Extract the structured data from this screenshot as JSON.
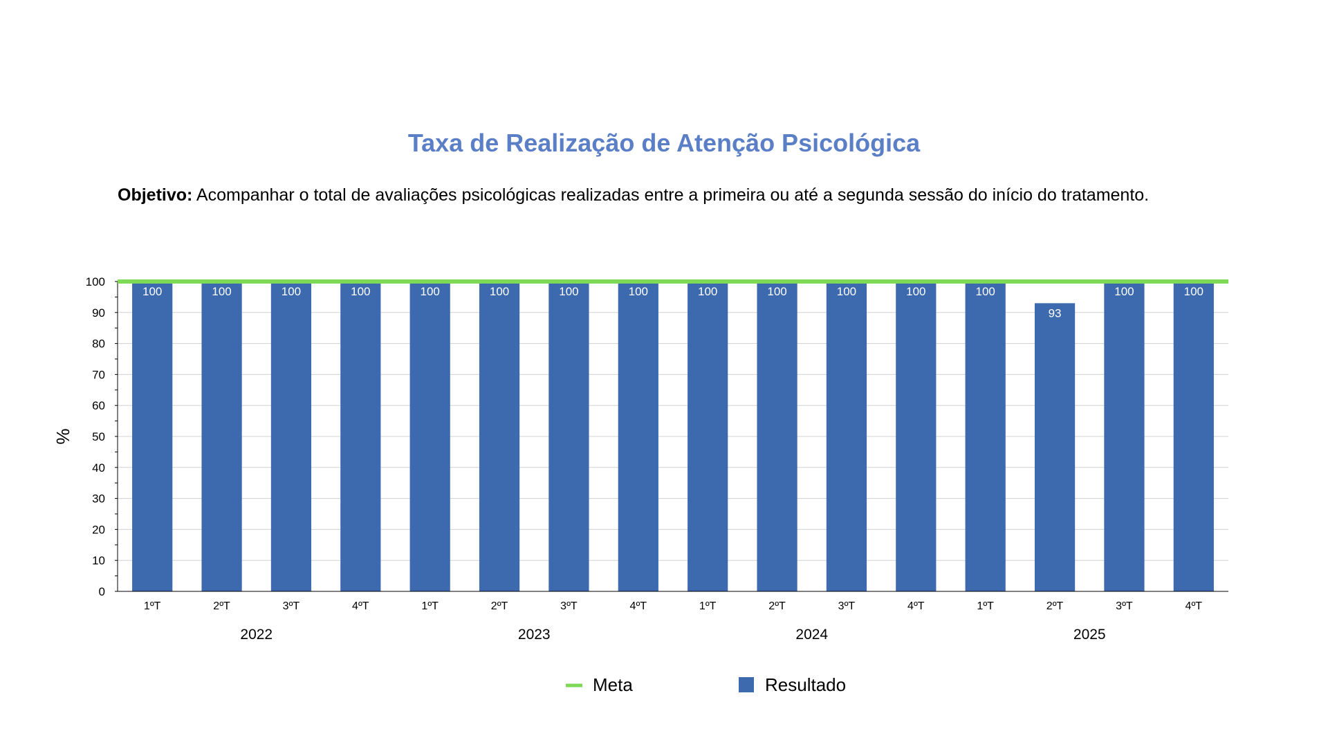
{
  "header": {
    "title": "Taxa de Realização de Atenção Psicológica",
    "objective_label": "Objetivo:",
    "objective_text": " Acompanhar o total de avaliações psicológicas realizadas entre a primeira ou até a segunda sessão do início do tratamento."
  },
  "chart_data": {
    "type": "bar",
    "title": "Taxa de Realização de Atenção Psicológica",
    "ylabel": "%",
    "xlabel": "",
    "ylim": [
      0,
      100
    ],
    "yticks": [
      0,
      10,
      20,
      30,
      40,
      50,
      60,
      70,
      80,
      90,
      100
    ],
    "grid": true,
    "legend_position": "bottom",
    "categories": [
      "1ºT",
      "2ºT",
      "3ºT",
      "4ºT",
      "1ºT",
      "2ºT",
      "3ºT",
      "4ºT",
      "1ºT",
      "2ºT",
      "3ºT",
      "4ºT",
      "1ºT",
      "2ºT",
      "3ºT",
      "4ºT"
    ],
    "groups": [
      {
        "label": "2022",
        "count": 4
      },
      {
        "label": "2023",
        "count": 4
      },
      {
        "label": "2024",
        "count": 4
      },
      {
        "label": "2025",
        "count": 4
      }
    ],
    "series": [
      {
        "name": "Resultado",
        "type": "bar",
        "color": "#3d6aaf",
        "values": [
          100,
          100,
          100,
          100,
          100,
          100,
          100,
          100,
          100,
          100,
          100,
          100,
          100,
          93,
          100,
          100
        ]
      },
      {
        "name": "Meta",
        "type": "line",
        "color": "#7ed957",
        "values": [
          100,
          100,
          100,
          100,
          100,
          100,
          100,
          100,
          100,
          100,
          100,
          100,
          100,
          100,
          100,
          100
        ]
      }
    ],
    "legend": [
      {
        "name": "Meta",
        "marker": "line",
        "color": "#7ed957"
      },
      {
        "name": "Resultado",
        "marker": "square",
        "color": "#3d6aaf"
      }
    ]
  }
}
